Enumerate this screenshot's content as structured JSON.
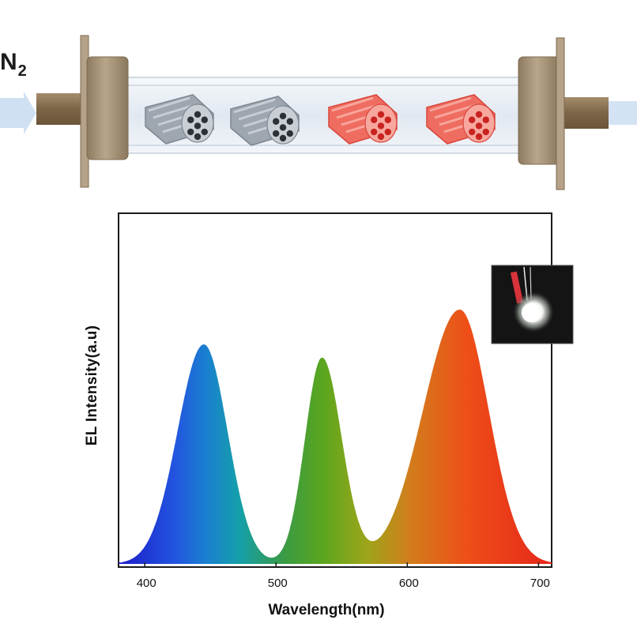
{
  "reactor": {
    "gas_label": "N",
    "gas_subscript": "2",
    "gas_arrow_color": "#cfe0f2",
    "flange_color": "#a8957a",
    "nozzle_color": "#8a7456",
    "tube_color": "#e4ecf4",
    "samples": [
      {
        "name": "gray-pellet",
        "color": "#9ea6b0"
      },
      {
        "name": "gray-pellet",
        "color": "#9ea6b0"
      },
      {
        "name": "red-pellet",
        "color": "#ef6d60"
      },
      {
        "name": "red-pellet",
        "color": "#ef6d60"
      }
    ]
  },
  "chart_data": {
    "type": "area",
    "xlabel": "Wavelength(nm)",
    "ylabel": "EL Intensity(a.u)",
    "xlim": [
      380,
      710
    ],
    "xticks": [
      400,
      500,
      600,
      700
    ],
    "yticks": [],
    "grid": false,
    "fill": "spectral-gradient",
    "peaks": [
      {
        "center": 445,
        "height": 0.82,
        "color": "blue"
      },
      {
        "center": 535,
        "height": 0.77,
        "color": "green"
      },
      {
        "center": 640,
        "height": 0.95,
        "color": "red"
      }
    ],
    "inset": {
      "content": "photo of glowing white LED",
      "placement": "top-right"
    }
  }
}
